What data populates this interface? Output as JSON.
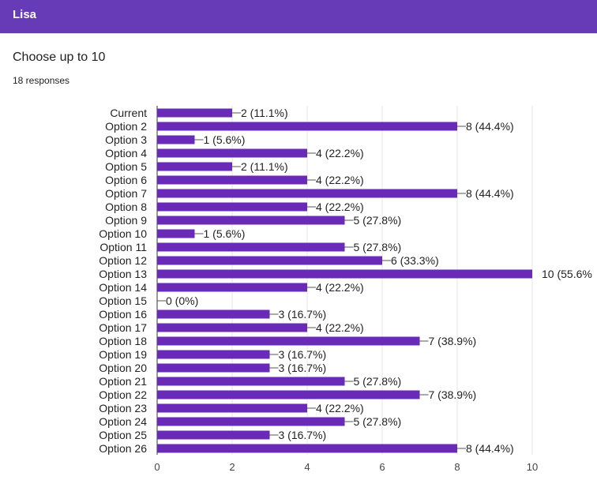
{
  "header": {
    "title": "Lisa"
  },
  "question": {
    "title": "Choose up to 10",
    "responses": "18 responses"
  },
  "colors": {
    "header_bg": "#673ab7",
    "bar": "#6a2ab8",
    "grid": "#e6e6e6",
    "axis": "#333333",
    "text": "#222222"
  },
  "chart_data": {
    "type": "bar",
    "orientation": "horizontal",
    "title": "",
    "xlabel": "",
    "ylabel": "",
    "xlim": [
      0,
      10
    ],
    "x_ticks": [
      "0",
      "2",
      "4",
      "6",
      "8",
      "10"
    ],
    "grid": true,
    "categories": [
      "Current",
      "Option 2",
      "Option 3",
      "Option 4",
      "Option 5",
      "Option 6",
      "Option 7",
      "Option 8",
      "Option 9",
      "Option 10",
      "Option 11",
      "Option 12",
      "Option 13",
      "Option 14",
      "Option 15",
      "Option 16",
      "Option 17",
      "Option 18",
      "Option 19",
      "Option 20",
      "Option 21",
      "Option 22",
      "Option 23",
      "Option 24",
      "Option 25",
      "Option 26"
    ],
    "values": [
      2,
      8,
      1,
      4,
      2,
      4,
      8,
      4,
      5,
      1,
      5,
      6,
      10,
      4,
      0,
      3,
      4,
      7,
      3,
      3,
      5,
      7,
      4,
      5,
      3,
      8
    ],
    "data_labels": [
      "2 (11.1%)",
      "8 (44.4%)",
      "1 (5.6%)",
      "4 (22.2%)",
      "2 (11.1%)",
      "4 (22.2%)",
      "8 (44.4%)",
      "4 (22.2%)",
      "5 (27.8%)",
      "1 (5.6%)",
      "5 (27.8%)",
      "6 (33.3%)",
      "10 (55.6%",
      "4 (22.2%)",
      "0 (0%)",
      "3 (16.7%)",
      "4 (22.2%)",
      "7 (38.9%)",
      "3 (16.7%)",
      "3 (16.7%)",
      "5 (27.8%)",
      "7 (38.9%)",
      "4 (22.2%)",
      "5 (27.8%)",
      "3 (16.7%)",
      "8 (44.4%)"
    ]
  }
}
